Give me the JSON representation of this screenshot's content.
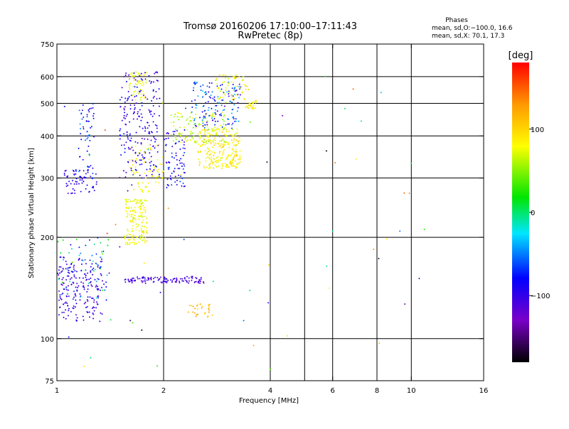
{
  "chart_data": {
    "type": "scatter",
    "title": "Tromsø 20160206 17:10:00–17:11:43",
    "subtitle": "RwPretec (8p)",
    "legend_title": "Phases",
    "legend_lines": [
      "mean, sd,O:−100.0, 16.6",
      "mean, sd,X:  70.1, 17.3"
    ],
    "xlabel": "Frequency [MHz]",
    "ylabel": "Stationary phase Virtual Height [km]",
    "x_scale": "log",
    "y_scale": "log",
    "xlim": [
      1,
      16
    ],
    "ylim": [
      75,
      750
    ],
    "x_ticks": [
      1,
      2,
      4,
      6,
      8,
      10,
      16
    ],
    "y_ticks": [
      75,
      100,
      200,
      300,
      400,
      500,
      600,
      750
    ],
    "x_gridlines": [
      2,
      4,
      5,
      6,
      8,
      10
    ],
    "y_gridlines": [
      100,
      200,
      300,
      400,
      500,
      600
    ],
    "colorbar": {
      "label": "[deg]",
      "range": [
        -180,
        180
      ],
      "ticks": [
        -100,
        0,
        100
      ],
      "colormap": [
        "#000000",
        "#7a00c8",
        "#0000ff",
        "#00e6ff",
        "#00e600",
        "#ffff00",
        "#ff9900",
        "#ff0000"
      ]
    },
    "clusters": [
      {
        "name": "O-trace low",
        "x": [
          1.0,
          1.35
        ],
        "y": [
          112,
          175
        ],
        "phase": [
          -115,
          -90
        ],
        "n": 200
      },
      {
        "name": "O-trace spread F low",
        "x": [
          1.0,
          1.4
        ],
        "y": [
          130,
          200
        ],
        "phase": [
          -100,
          40
        ],
        "n": 70
      },
      {
        "name": "O-trace ridge",
        "x": [
          1.55,
          2.6
        ],
        "y": [
          146,
          153
        ],
        "phase": [
          -120,
          -95
        ],
        "n": 120
      },
      {
        "name": "O-trace mid",
        "x": [
          1.05,
          1.3
        ],
        "y": [
          270,
          320
        ],
        "phase": [
          -115,
          -80
        ],
        "n": 60
      },
      {
        "name": "O-trace mid vertical",
        "x": [
          1.15,
          1.28
        ],
        "y": [
          300,
          500
        ],
        "phase": [
          -110,
          -40
        ],
        "n": 60
      },
      {
        "name": "O-trace upper",
        "x": [
          1.5,
          1.95
        ],
        "y": [
          300,
          620
        ],
        "phase": [
          -120,
          -70
        ],
        "n": 220
      },
      {
        "name": "O-trace upper 2",
        "x": [
          2.0,
          2.3
        ],
        "y": [
          280,
          420
        ],
        "phase": [
          -115,
          -60
        ],
        "n": 80
      },
      {
        "name": "X-trace column",
        "x": [
          1.55,
          1.8
        ],
        "y": [
          190,
          260
        ],
        "phase": [
          60,
          95
        ],
        "n": 160
      },
      {
        "name": "X-trace middle",
        "x": [
          1.6,
          2.0
        ],
        "y": [
          270,
          380
        ],
        "phase": [
          70,
          95
        ],
        "n": 70
      },
      {
        "name": "X-trace top",
        "x": [
          1.6,
          1.8
        ],
        "y": [
          510,
          620
        ],
        "phase": [
          60,
          90
        ],
        "n": 50
      },
      {
        "name": "X-trace cloud",
        "x": [
          2.5,
          3.3
        ],
        "y": [
          320,
          420
        ],
        "phase": [
          70,
          105
        ],
        "n": 240
      },
      {
        "name": "X-trace upper band",
        "x": [
          2.1,
          3.0
        ],
        "y": [
          380,
          470
        ],
        "phase": [
          40,
          90
        ],
        "n": 120
      },
      {
        "name": "O-trace arc",
        "x": [
          2.4,
          3.3
        ],
        "y": [
          420,
          580
        ],
        "phase": [
          -110,
          -30
        ],
        "n": 150
      },
      {
        "name": "X-trace arc top",
        "x": [
          2.8,
          3.5
        ],
        "y": [
          500,
          610
        ],
        "phase": [
          60,
          110
        ],
        "n": 60
      },
      {
        "name": "X-trace right",
        "x": [
          3.4,
          3.65
        ],
        "y": [
          480,
          510
        ],
        "phase": [
          70,
          100
        ],
        "n": 30
      },
      {
        "name": "X-trace low",
        "x": [
          2.35,
          2.75
        ],
        "y": [
          115,
          127
        ],
        "phase": [
          100,
          130
        ],
        "n": 30
      },
      {
        "name": "scatter",
        "x": [
          1.0,
          11.0
        ],
        "y": [
          80,
          650
        ],
        "phase": [
          -180,
          180
        ],
        "n": 60
      }
    ]
  }
}
